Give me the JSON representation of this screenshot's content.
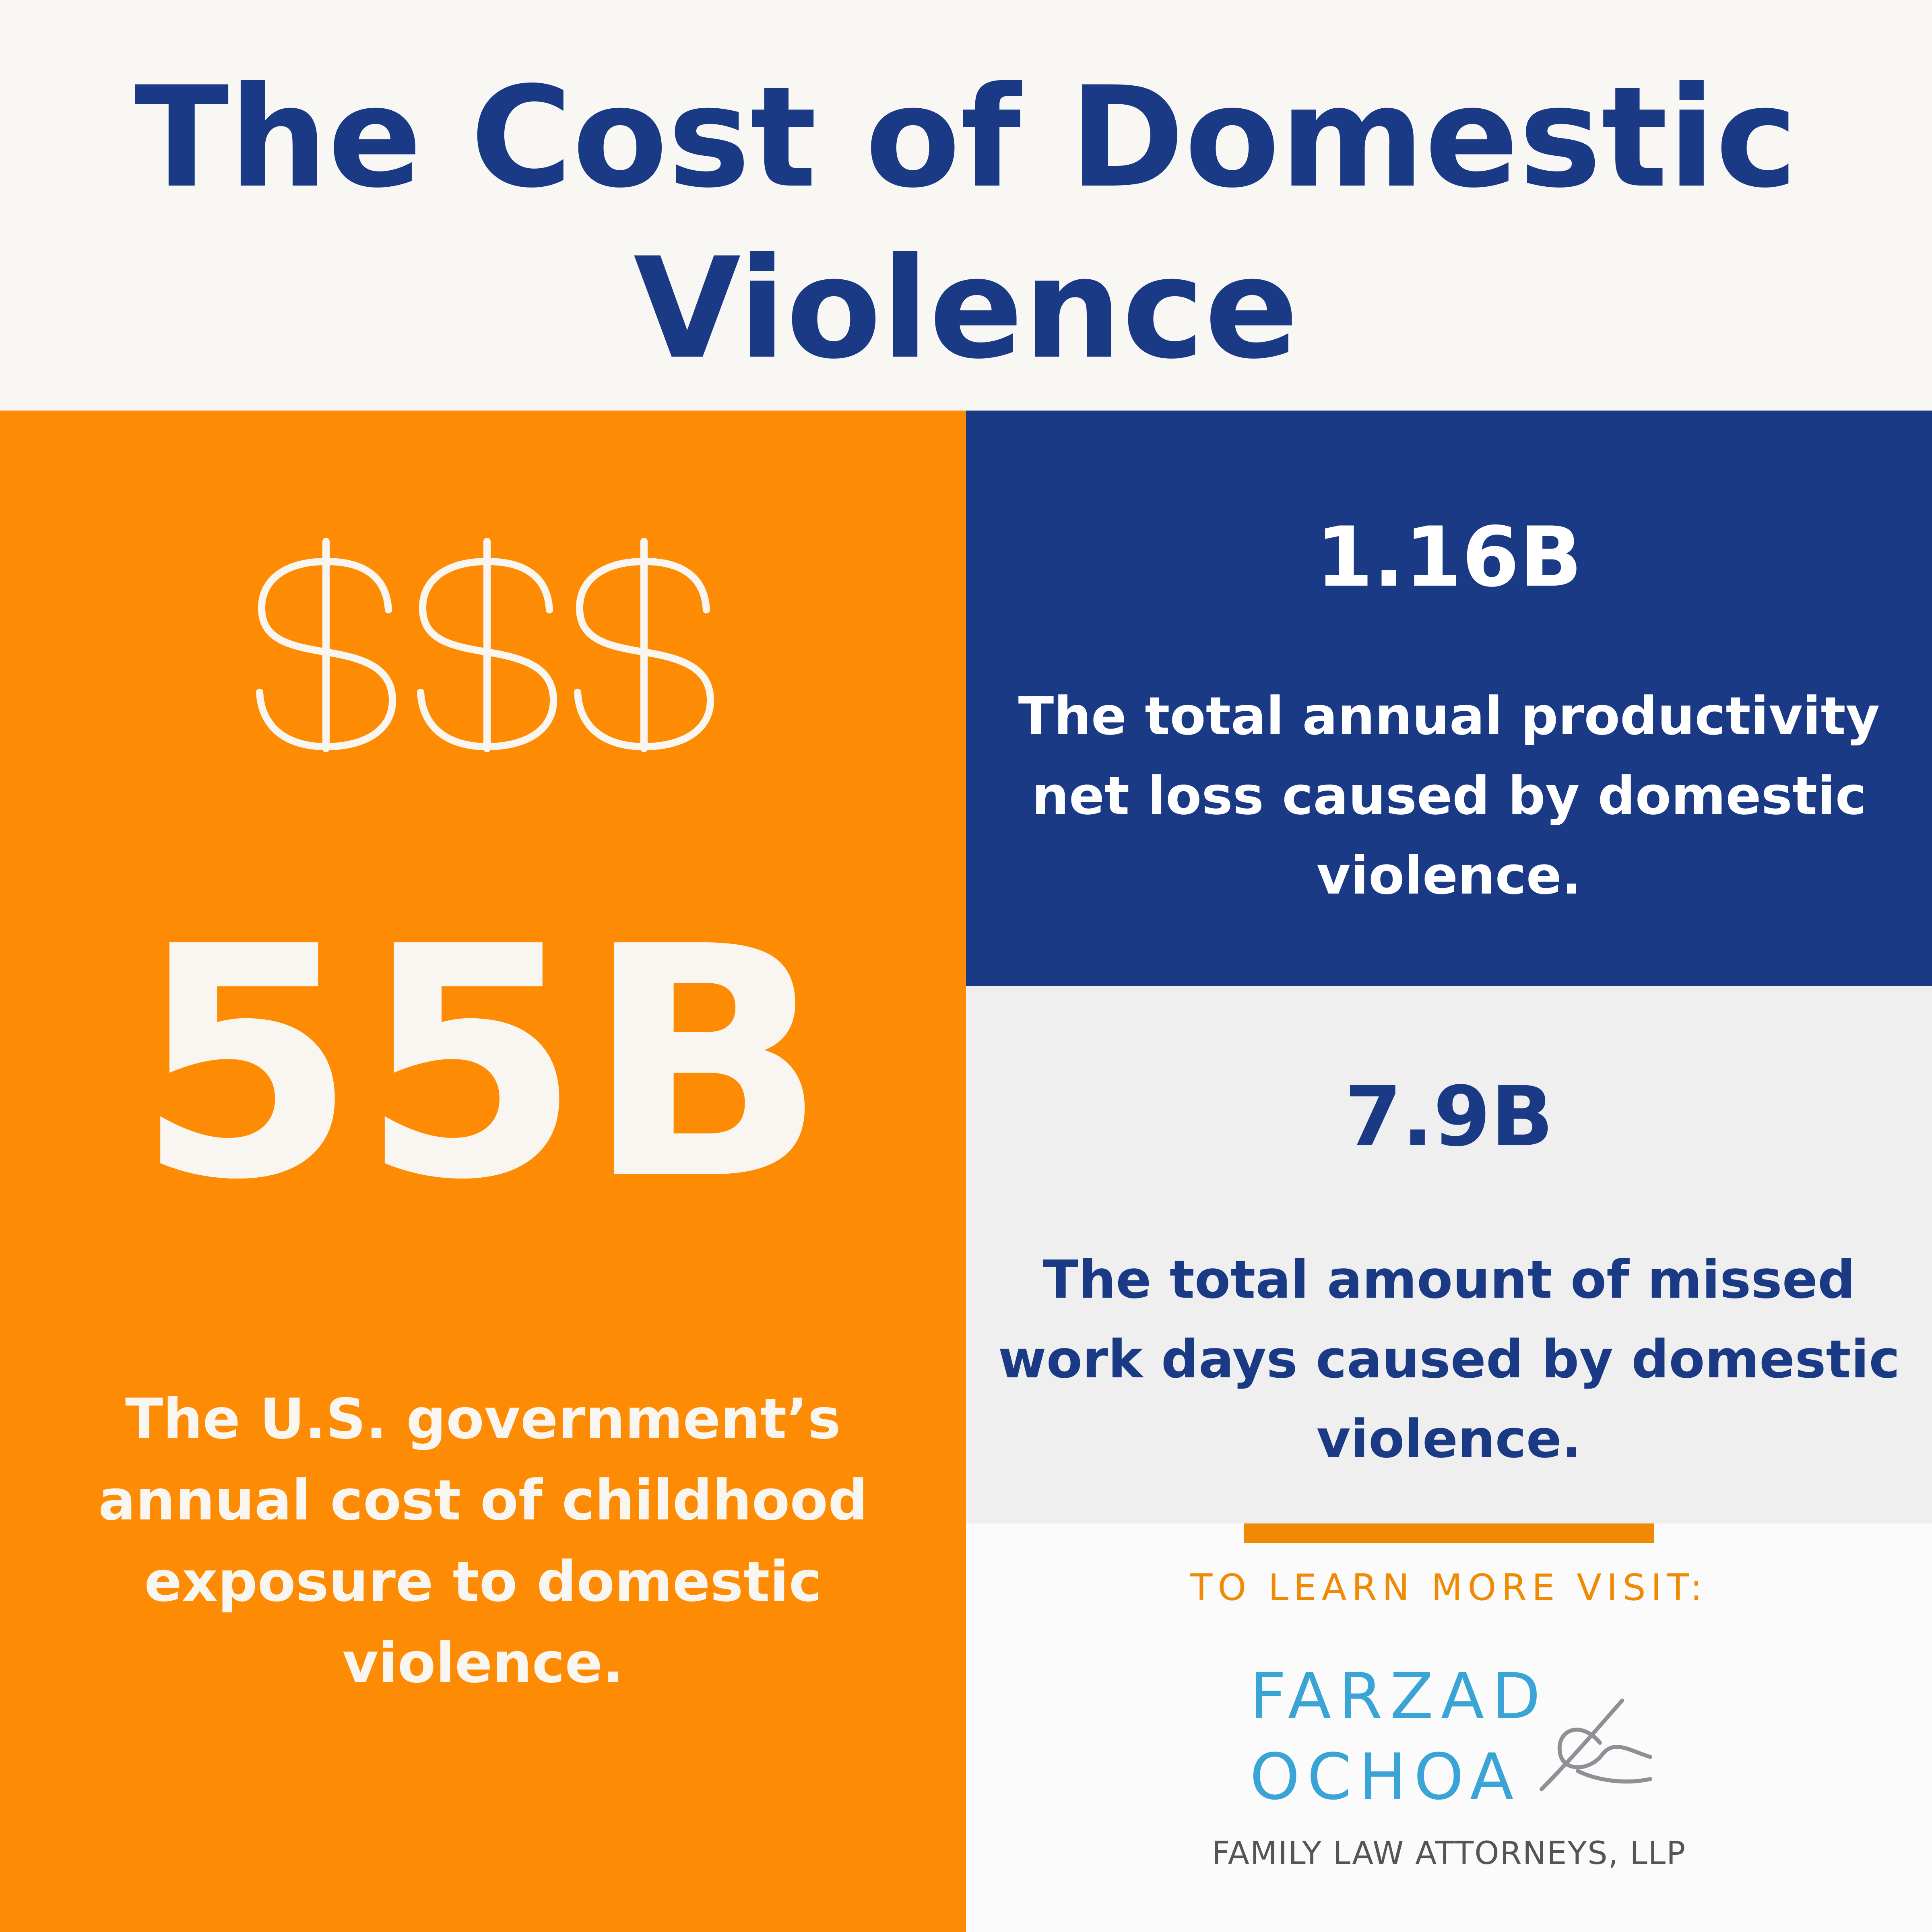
{
  "title": "The Cost of Domestic Violence",
  "left": {
    "icon": "dollar-signs-icon",
    "value": "55B",
    "caption": "The U.S. government’s annual cost of childhood exposure to domestic violence."
  },
  "stat1": {
    "value": "1.16B",
    "caption": "The total annual productivity net loss caused by domestic violence."
  },
  "stat2": {
    "value": "7.9B",
    "caption": "The total amount of missed work days caused by domestic violence."
  },
  "footer": {
    "cta": "TO LEARN MORE VISIT:",
    "logo_line1": "FARZAD",
    "logo_line2": "OCHOA",
    "logo_sub": "FAMILY LAW ATTORNEYS, LLP"
  },
  "colors": {
    "orange": "#fd8b03",
    "navy": "#1b3a85",
    "light_gray": "#efefef",
    "logo_blue": "#3aa4d6"
  }
}
